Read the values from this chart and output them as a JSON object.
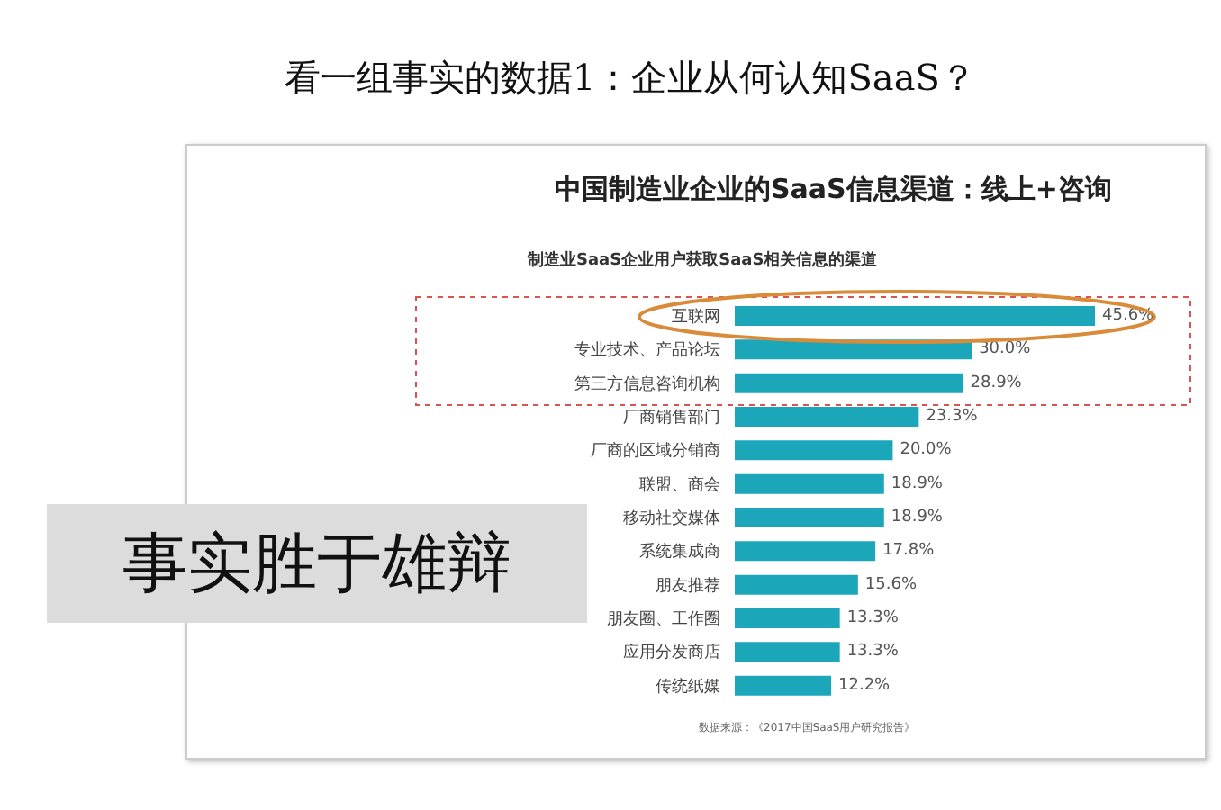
{
  "chart_data": {
    "type": "bar",
    "orientation": "horizontal",
    "title": "中国制造业企业的SaaS信息渠道：线上+咨询",
    "subtitle": "制造业SaaS企业用户获取SaaS相关信息的渠道",
    "categories": [
      "互联网",
      "专业技术、产品论坛",
      "第三方信息咨询机构",
      "厂商销售部门",
      "厂商的区域分销商",
      "联盟、商会",
      "移动社交媒体",
      "系统集成商",
      "朋友推荐",
      "朋友圈、工作圈",
      "应用分发商店",
      "传统纸媒"
    ],
    "values": [
      45.6,
      30.0,
      28.9,
      23.3,
      20.0,
      18.9,
      18.9,
      17.8,
      15.6,
      13.3,
      13.3,
      12.2
    ],
    "value_labels": [
      "45.6%",
      "30.0%",
      "28.9%",
      "23.3%",
      "20.0%",
      "18.9%",
      "18.9%",
      "17.8%",
      "15.6%",
      "13.3%",
      "13.3%",
      "12.2%"
    ],
    "color": "#1ca6ba",
    "annotations": [
      "看一组事实的数据1：企业从何认知SaaS？",
      "事实胜于雄辩",
      "数据来源：《2017中国SaaS用户研究报告》"
    ]
  }
}
